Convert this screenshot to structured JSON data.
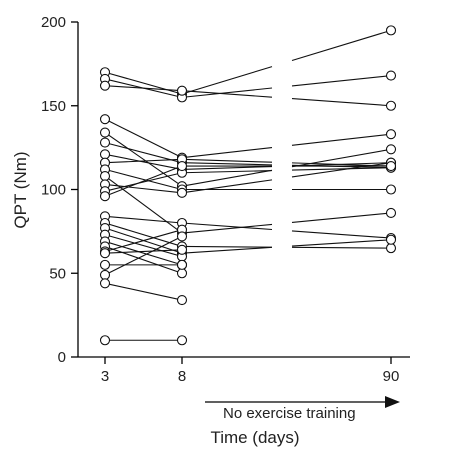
{
  "chart_data": {
    "type": "line",
    "xlabel": "Time (days)",
    "ylabel": "QPT (Nm)",
    "x_ticks": [
      "3",
      "8",
      "90"
    ],
    "y_ticks": [
      "0",
      "50",
      "100",
      "150",
      "200"
    ],
    "ylim": [
      0,
      200
    ],
    "grid": false,
    "annotation": "No exercise training",
    "series": [
      {
        "values": [
          170,
          157,
          195
        ]
      },
      {
        "values": [
          166,
          155,
          168
        ]
      },
      {
        "values": [
          162,
          159,
          150
        ]
      },
      {
        "values": [
          142,
          119,
          133
        ]
      },
      {
        "values": [
          134,
          102,
          124
        ]
      },
      {
        "values": [
          128,
          116,
          113
        ]
      },
      {
        "values": [
          121,
          112,
          116
        ]
      },
      {
        "values": [
          116,
          118,
          114
        ]
      },
      {
        "values": [
          112,
          100,
          100
        ]
      },
      {
        "values": [
          108,
          74,
          86
        ]
      },
      {
        "values": [
          103,
          98,
          116
        ]
      },
      {
        "values": [
          99,
          110,
          113
        ]
      },
      {
        "values": [
          96,
          114,
          114
        ]
      },
      {
        "values": [
          84,
          80,
          71
        ]
      },
      {
        "values": [
          80,
          66,
          65
        ]
      },
      {
        "values": [
          77,
          62,
          70
        ]
      },
      {
        "values": [
          73,
          60,
          null
        ]
      },
      {
        "values": [
          69,
          55,
          null
        ]
      },
      {
        "values": [
          66,
          50,
          null
        ]
      },
      {
        "values": [
          63,
          76,
          null
        ]
      },
      {
        "values": [
          62,
          64,
          null
        ]
      },
      {
        "values": [
          55,
          55,
          null
        ]
      },
      {
        "values": [
          49,
          72,
          null
        ]
      },
      {
        "values": [
          44,
          34,
          null
        ]
      },
      {
        "values": [
          10,
          10,
          null
        ]
      }
    ]
  }
}
